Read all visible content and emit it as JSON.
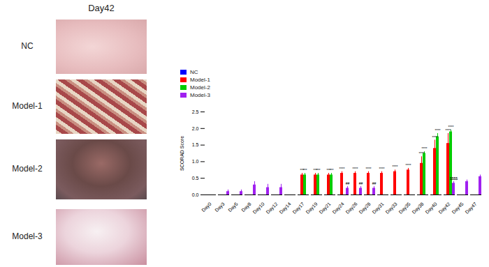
{
  "panel": {
    "title": "Day42",
    "labels": [
      "NC",
      "Model-1",
      "Model-2",
      "Model-3"
    ]
  },
  "chart_data": {
    "type": "bar",
    "y_label": "SCORAD Score",
    "categories": [
      "Day0",
      "Day3",
      "Day5",
      "Day8",
      "Day10",
      "Day12",
      "Day14",
      "Day17",
      "Day19",
      "Day21",
      "Day24",
      "Day26",
      "Day28",
      "Day31",
      "Day33",
      "Day35",
      "Day38",
      "Day40",
      "Day42",
      "Day45",
      "Day47"
    ],
    "series": [
      {
        "name": "NC",
        "color": "#0000ff",
        "values": [
          0,
          0,
          0,
          0,
          0,
          0,
          0,
          0,
          0,
          0,
          0,
          0,
          0,
          0,
          0,
          0,
          0,
          0,
          0,
          0,
          0
        ],
        "errors": [
          null,
          null,
          null,
          null,
          null,
          null,
          null,
          null,
          null,
          null,
          null,
          null,
          null,
          null,
          null,
          null,
          null,
          null,
          null,
          null,
          null
        ],
        "annotations": [
          null,
          null,
          null,
          null,
          null,
          null,
          null,
          null,
          null,
          null,
          null,
          null,
          null,
          null,
          null,
          null,
          null,
          null,
          null,
          null,
          null
        ]
      },
      {
        "name": "Model-1",
        "color": "#ff0000",
        "values": [
          0,
          0,
          0,
          0,
          0,
          0,
          0,
          0.6,
          0.6,
          0.6,
          0.65,
          0.65,
          0.65,
          0.65,
          0.7,
          0.75,
          0.95,
          1.4,
          1.55,
          null,
          null
        ],
        "errors": [
          null,
          null,
          null,
          null,
          null,
          null,
          null,
          0.05,
          0.05,
          0.05,
          0.05,
          0.05,
          0.05,
          0.05,
          0.05,
          0.05,
          0.2,
          0.25,
          0.3,
          null,
          null
        ],
        "annotations": [
          null,
          null,
          null,
          null,
          null,
          null,
          null,
          "***",
          "***",
          "***",
          "****",
          "****",
          "****",
          "****",
          "****",
          "****",
          "****",
          "****",
          "****",
          null,
          null
        ]
      },
      {
        "name": "Model-2",
        "color": "#00cc00",
        "values": [
          0,
          0,
          0,
          0,
          0,
          0,
          0,
          0.6,
          0.6,
          0.6,
          null,
          null,
          null,
          null,
          null,
          null,
          1.25,
          1.75,
          1.9,
          null,
          null
        ],
        "errors": [
          null,
          null,
          null,
          null,
          null,
          null,
          null,
          0.05,
          0.05,
          0.05,
          null,
          null,
          null,
          null,
          null,
          null,
          0.05,
          0.1,
          0.05,
          null,
          null
        ],
        "annotations": [
          null,
          null,
          null,
          null,
          null,
          null,
          null,
          "***",
          "***",
          "***",
          null,
          null,
          null,
          null,
          null,
          null,
          "****",
          "****",
          "****",
          null,
          null
        ]
      },
      {
        "name": "Model-3",
        "color": "#a020f0",
        "values": [
          0,
          0.1,
          0.1,
          0.3,
          0.22,
          0.22,
          null,
          null,
          null,
          null,
          0.2,
          0.2,
          0.2,
          null,
          null,
          null,
          null,
          null,
          0.35,
          0.4,
          0.55
        ],
        "errors": [
          null,
          0.05,
          0.05,
          0.1,
          0.1,
          0.1,
          null,
          null,
          null,
          null,
          0.05,
          0.05,
          0.05,
          null,
          null,
          null,
          null,
          null,
          0.05,
          0.05,
          0.05
        ],
        "annotations": [
          null,
          null,
          null,
          null,
          null,
          null,
          null,
          null,
          null,
          null,
          "##",
          "##",
          "##",
          null,
          null,
          null,
          null,
          null,
          "$$$$",
          null,
          null
        ]
      }
    ],
    "ylim": [
      0,
      2.5
    ],
    "yticks": [
      {
        "value": 0,
        "label": "0.0"
      },
      {
        "value": 0.5,
        "label": "0.5"
      },
      {
        "value": 1,
        "label": "1.0"
      },
      {
        "value": 1.5,
        "label": "1.5"
      },
      {
        "value": 2,
        "label": "2.0"
      },
      {
        "value": 2.5,
        "label": "2.5"
      }
    ],
    "grid": false,
    "legend": "top-left"
  }
}
